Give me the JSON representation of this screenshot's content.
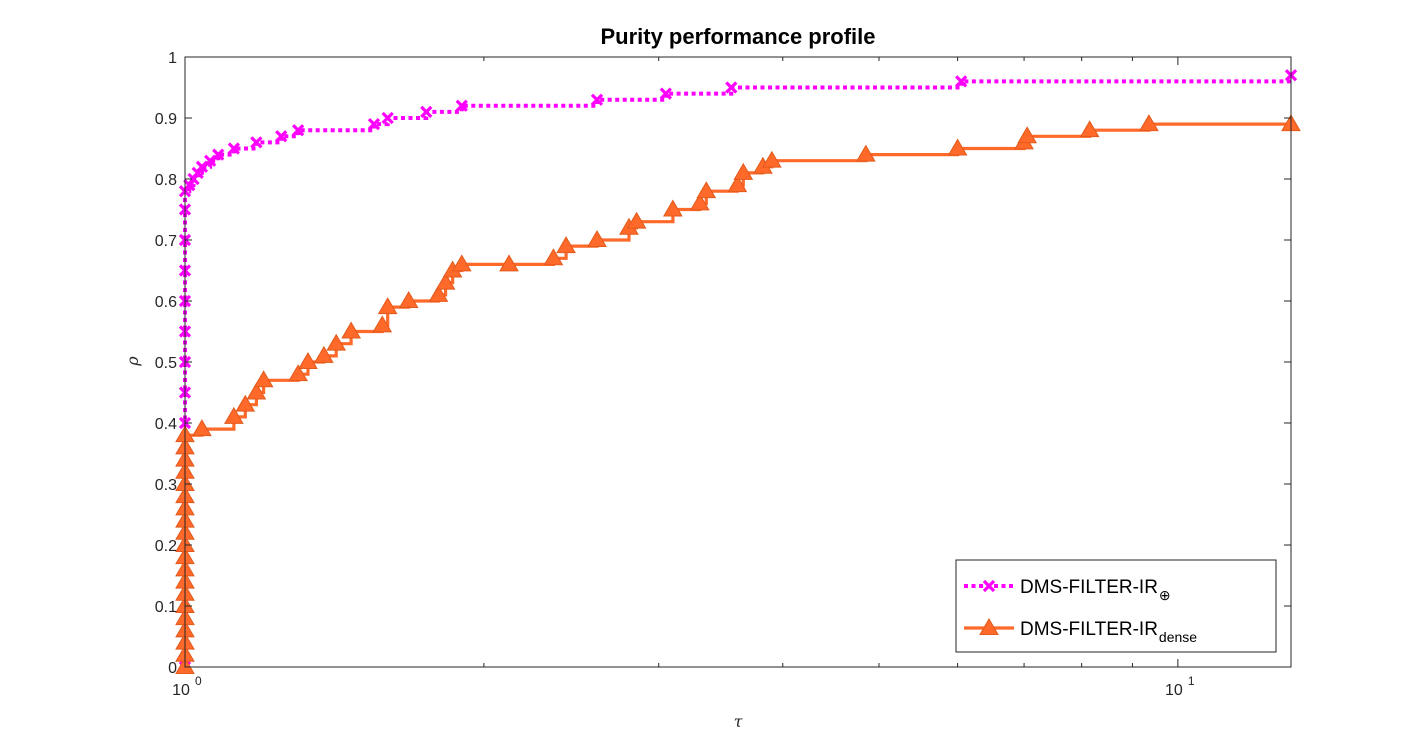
{
  "chart_data": {
    "type": "line",
    "title": "Purity performance profile",
    "xlabel": "τ",
    "ylabel": "ρ",
    "xscale": "log",
    "xlim": [
      1,
      13
    ],
    "ylim": [
      0,
      1
    ],
    "yticks": [
      "0",
      "0.1",
      "0.2",
      "0.3",
      "0.4",
      "0.5",
      "0.6",
      "0.7",
      "0.8",
      "0.9",
      "1"
    ],
    "xticks": [
      {
        "value": 1,
        "base": "10",
        "exp": "0"
      },
      {
        "value": 10,
        "base": "10",
        "exp": "1"
      }
    ],
    "box": true,
    "grid": false,
    "legend": {
      "placement": "bottom-right",
      "entries": [
        {
          "label": "DMS-FILTER-IR",
          "subscript": "⊕"
        },
        {
          "label": "DMS-FILTER-IR",
          "subscript": "dense"
        }
      ]
    },
    "series": [
      {
        "color": "#ff00ff",
        "style": "dotted",
        "marker": "x",
        "points": [
          [
            1,
            0.0
          ],
          [
            1,
            0.4
          ],
          [
            1,
            0.45
          ],
          [
            1,
            0.5
          ],
          [
            1,
            0.55
          ],
          [
            1,
            0.6
          ],
          [
            1,
            0.65
          ],
          [
            1,
            0.7
          ],
          [
            1,
            0.75
          ],
          [
            1,
            0.78
          ],
          [
            1.01,
            0.79
          ],
          [
            1.02,
            0.8
          ],
          [
            1.03,
            0.81
          ],
          [
            1.04,
            0.82
          ],
          [
            1.06,
            0.83
          ],
          [
            1.08,
            0.84
          ],
          [
            1.12,
            0.85
          ],
          [
            1.18,
            0.86
          ],
          [
            1.25,
            0.87
          ],
          [
            1.3,
            0.88
          ],
          [
            1.55,
            0.89
          ],
          [
            1.6,
            0.9
          ],
          [
            1.75,
            0.91
          ],
          [
            1.9,
            0.92
          ],
          [
            2.6,
            0.93
          ],
          [
            3.05,
            0.94
          ],
          [
            3.55,
            0.95
          ],
          [
            6.05,
            0.96
          ],
          [
            13,
            0.97
          ]
        ]
      },
      {
        "color": "#ff6929",
        "style": "solid",
        "marker": "triangle",
        "points": [
          [
            1,
            0.0
          ],
          [
            1,
            0.02
          ],
          [
            1,
            0.04
          ],
          [
            1,
            0.06
          ],
          [
            1,
            0.08
          ],
          [
            1,
            0.1
          ],
          [
            1,
            0.12
          ],
          [
            1,
            0.14
          ],
          [
            1,
            0.16
          ],
          [
            1,
            0.18
          ],
          [
            1,
            0.2
          ],
          [
            1,
            0.22
          ],
          [
            1,
            0.24
          ],
          [
            1,
            0.26
          ],
          [
            1,
            0.28
          ],
          [
            1,
            0.3
          ],
          [
            1,
            0.32
          ],
          [
            1,
            0.34
          ],
          [
            1,
            0.36
          ],
          [
            1,
            0.38
          ],
          [
            1.04,
            0.39
          ],
          [
            1.12,
            0.41
          ],
          [
            1.15,
            0.43
          ],
          [
            1.18,
            0.45
          ],
          [
            1.2,
            0.47
          ],
          [
            1.3,
            0.48
          ],
          [
            1.33,
            0.5
          ],
          [
            1.38,
            0.51
          ],
          [
            1.42,
            0.53
          ],
          [
            1.47,
            0.55
          ],
          [
            1.58,
            0.56
          ],
          [
            1.6,
            0.59
          ],
          [
            1.68,
            0.6
          ],
          [
            1.8,
            0.61
          ],
          [
            1.83,
            0.63
          ],
          [
            1.86,
            0.65
          ],
          [
            1.9,
            0.66
          ],
          [
            2.12,
            0.66
          ],
          [
            2.35,
            0.67
          ],
          [
            2.42,
            0.69
          ],
          [
            2.6,
            0.7
          ],
          [
            2.8,
            0.72
          ],
          [
            2.85,
            0.73
          ],
          [
            3.1,
            0.75
          ],
          [
            3.3,
            0.76
          ],
          [
            3.35,
            0.78
          ],
          [
            3.6,
            0.79
          ],
          [
            3.65,
            0.81
          ],
          [
            3.82,
            0.82
          ],
          [
            3.9,
            0.83
          ],
          [
            4.85,
            0.84
          ],
          [
            6.0,
            0.85
          ],
          [
            7.0,
            0.86
          ],
          [
            7.05,
            0.87
          ],
          [
            8.15,
            0.88
          ],
          [
            9.35,
            0.89
          ],
          [
            13,
            0.89
          ]
        ]
      }
    ]
  }
}
